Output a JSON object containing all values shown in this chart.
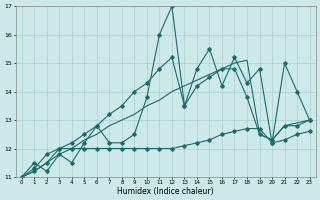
{
  "xlabel": "Humidex (Indice chaleur)",
  "xlim": [
    -0.5,
    23.5
  ],
  "ylim": [
    11,
    17
  ],
  "yticks": [
    11,
    12,
    13,
    14,
    15,
    16,
    17
  ],
  "xticks": [
    0,
    1,
    2,
    3,
    4,
    5,
    6,
    7,
    8,
    9,
    10,
    11,
    12,
    13,
    14,
    15,
    16,
    17,
    18,
    19,
    20,
    21,
    22,
    23
  ],
  "bg_color": "#cce8e8",
  "line_color": "#1a6b6b",
  "grid_color": "#aacfcf",
  "series": {
    "line_volatile": [
      11.0,
      11.5,
      11.2,
      11.8,
      11.5,
      12.2,
      12.8,
      12.2,
      12.2,
      12.5,
      13.8,
      16.0,
      17.0,
      13.5,
      14.8,
      15.5,
      14.2,
      15.2,
      14.3,
      14.8,
      12.2,
      15.0,
      14.0,
      13.0
    ],
    "line_smooth_up": [
      11.0,
      11.2,
      11.5,
      12.0,
      12.2,
      12.5,
      12.8,
      13.2,
      13.5,
      14.0,
      14.3,
      14.8,
      15.2,
      13.5,
      14.2,
      14.5,
      14.8,
      14.8,
      13.8,
      12.5,
      12.3,
      12.8,
      12.8,
      13.0
    ],
    "line_flat_up": [
      11.0,
      11.3,
      11.8,
      12.0,
      12.0,
      12.0,
      12.0,
      12.0,
      12.0,
      12.0,
      12.0,
      12.0,
      12.0,
      12.1,
      12.2,
      12.3,
      12.5,
      12.6,
      12.7,
      12.7,
      12.2,
      12.3,
      12.5,
      12.6
    ],
    "line_diagonal": [
      11.0,
      11.2,
      11.5,
      11.8,
      12.0,
      12.3,
      12.5,
      12.8,
      13.0,
      13.2,
      13.5,
      13.7,
      14.0,
      14.2,
      14.4,
      14.6,
      14.8,
      15.0,
      15.1,
      12.5,
      12.3,
      12.8,
      12.9,
      13.0
    ]
  }
}
